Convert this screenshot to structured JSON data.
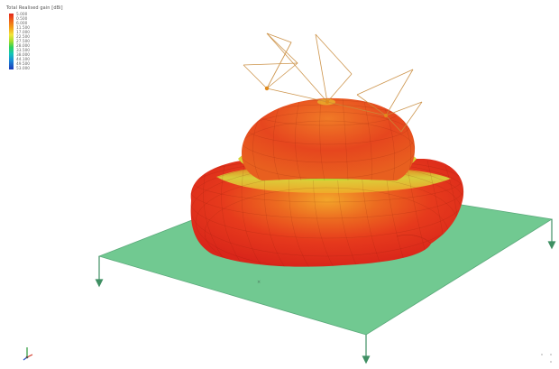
{
  "legend": {
    "title": "Total Realised gain [dBi]",
    "ticks": [
      "5.000",
      "0.500",
      "6.000",
      "11.500",
      "17.000",
      "22.500",
      "27.500",
      "28.000",
      "33.500",
      "38.000",
      "44.100",
      "49.500",
      "53.000"
    ]
  },
  "colors": {
    "pattern_high": "#e8341c",
    "pattern_mid": "#f09a1c",
    "pattern_low": "#c8e63a",
    "ground_plane": "#6fc78f",
    "supports": "#3f8f63",
    "wire_frame": "#c88a3a"
  },
  "icons": {
    "axis_triad": "axis-triad-icon",
    "view_dots": "view-dots-icon"
  }
}
